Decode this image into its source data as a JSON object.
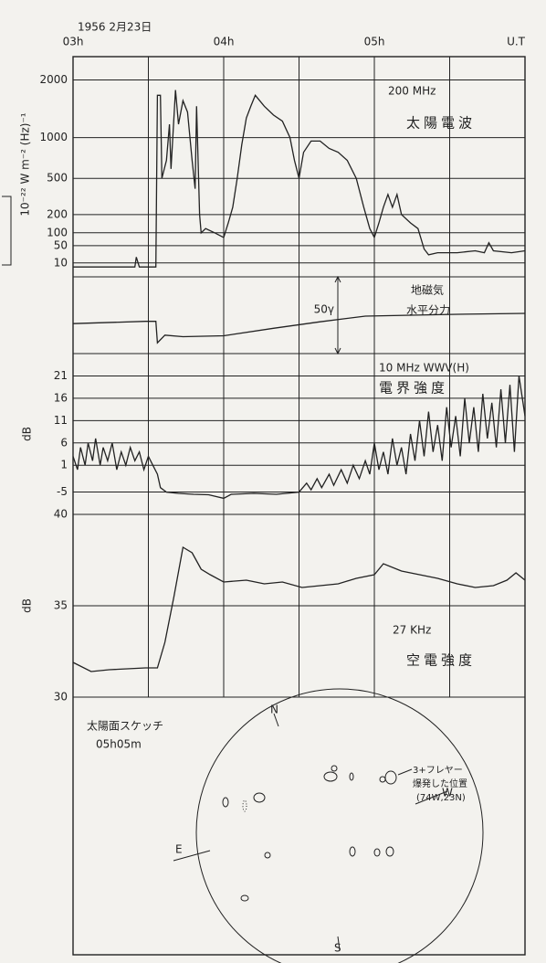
{
  "chart_data": [
    {
      "type": "line",
      "title": "1956 2月23日",
      "xlim": [
        3,
        6
      ],
      "xticks": [
        {
          "value": 3,
          "label": "03h"
        },
        {
          "value": 4,
          "label": "04h"
        },
        {
          "value": 5,
          "label": "05h"
        }
      ],
      "xlabel": "U.T",
      "xgrid": [
        3.5,
        4,
        4.5,
        5,
        5.5
      ],
      "ylabel": "10⁻²² W m⁻² (Hz)⁻¹",
      "yscale": "sqrt",
      "ylim": [
        0,
        2500
      ],
      "yticks": [
        10,
        50,
        100,
        200,
        500,
        1000,
        2000
      ],
      "annotations": [
        "200 MHz",
        "太陽電波"
      ],
      "color": "#222",
      "x": [
        3.0,
        3.41,
        3.42,
        3.44,
        3.55,
        3.56,
        3.58,
        3.59,
        3.62,
        3.64,
        3.65,
        3.68,
        3.7,
        3.73,
        3.76,
        3.79,
        3.81,
        3.82,
        3.84,
        3.85,
        3.88,
        3.94,
        4.0,
        4.03,
        4.06,
        4.09,
        4.12,
        4.15,
        4.18,
        4.21,
        4.27,
        4.33,
        4.39,
        4.44,
        4.47,
        4.5,
        4.53,
        4.58,
        4.64,
        4.7,
        4.76,
        4.82,
        4.88,
        4.93,
        4.97,
        5.0,
        5.03,
        5.06,
        5.09,
        5.12,
        5.15,
        5.18,
        5.24,
        5.29,
        5.33,
        5.36,
        5.42,
        5.55,
        5.67,
        5.73,
        5.76,
        5.79,
        5.91,
        6.0
      ],
      "values": [
        5,
        5,
        20,
        5,
        5,
        1700,
        1700,
        500,
        700,
        1200,
        600,
        1800,
        1200,
        1600,
        1400,
        700,
        400,
        1500,
        200,
        100,
        120,
        100,
        80,
        150,
        250,
        500,
        900,
        1300,
        1500,
        1700,
        1500,
        1350,
        1250,
        1000,
        700,
        500,
        800,
        950,
        950,
        850,
        800,
        700,
        500,
        250,
        120,
        80,
        150,
        250,
        350,
        250,
        350,
        200,
        150,
        120,
        40,
        25,
        30,
        30,
        35,
        30,
        60,
        35,
        30,
        35
      ]
    },
    {
      "type": "line",
      "annotations": [
        "地磁気",
        "水平分力"
      ],
      "ylim": [
        0,
        50
      ],
      "scale_bar": {
        "value": 50,
        "label": "50γ"
      },
      "color": "#222",
      "x": [
        3.0,
        3.48,
        3.55,
        3.56,
        3.61,
        3.73,
        4.0,
        4.33,
        4.64,
        4.94,
        5.24,
        5.55,
        6.0
      ],
      "values": [
        19.5,
        21,
        21,
        7,
        12,
        11,
        11.6,
        16.5,
        20.7,
        24.4,
        25,
        25.6,
        26.2
      ]
    },
    {
      "type": "line",
      "annotations": [
        "10 MHz WWV(H)",
        "電界強度"
      ],
      "ylabel": "dB",
      "ylim": [
        -10,
        26
      ],
      "yticks": [
        -5,
        1,
        6,
        11,
        16,
        21
      ],
      "color": "#222",
      "x": [
        3.0,
        3.03,
        3.05,
        3.08,
        3.1,
        3.13,
        3.15,
        3.18,
        3.2,
        3.23,
        3.26,
        3.29,
        3.32,
        3.35,
        3.38,
        3.41,
        3.44,
        3.47,
        3.5,
        3.53,
        3.56,
        3.58,
        3.62,
        3.7,
        3.8,
        3.9,
        4.0,
        4.05,
        4.2,
        4.35,
        4.5,
        4.55,
        4.58,
        4.62,
        4.65,
        4.7,
        4.73,
        4.78,
        4.82,
        4.86,
        4.9,
        4.94,
        4.97,
        5.0,
        5.03,
        5.06,
        5.09,
        5.12,
        5.15,
        5.18,
        5.21,
        5.24,
        5.27,
        5.3,
        5.33,
        5.36,
        5.39,
        5.42,
        5.45,
        5.48,
        5.51,
        5.54,
        5.57,
        5.6,
        5.63,
        5.66,
        5.69,
        5.72,
        5.75,
        5.78,
        5.81,
        5.84,
        5.87,
        5.9,
        5.93,
        5.96,
        6.0
      ],
      "values": [
        3,
        0,
        5,
        1,
        6,
        2,
        7,
        1,
        5,
        2,
        6,
        0,
        4,
        1,
        5,
        2,
        4,
        0,
        3,
        1,
        -1,
        -4,
        -5,
        -5.3,
        -5.5,
        -5.6,
        -6.4,
        -5.5,
        -5.3,
        -5.5,
        -5,
        -3,
        -4.5,
        -2,
        -4,
        -1,
        -3.5,
        0,
        -3,
        1,
        -2,
        2,
        -1,
        6,
        0,
        4,
        -1,
        7,
        1,
        5,
        -1,
        8,
        2,
        11,
        3,
        13,
        4,
        10,
        2,
        14,
        5,
        12,
        3,
        16,
        6,
        14,
        4,
        17,
        7,
        15,
        5,
        18,
        6,
        19,
        4,
        21,
        12
      ]
    },
    {
      "type": "line",
      "annotations": [
        "27 KHz",
        "空電強度"
      ],
      "ylabel": "dB",
      "ylim": [
        30,
        40
      ],
      "yticks": [
        30,
        35,
        40
      ],
      "color": "#222",
      "x": [
        3.0,
        3.12,
        3.24,
        3.48,
        3.56,
        3.61,
        3.67,
        3.73,
        3.79,
        3.85,
        3.91,
        4.0,
        4.15,
        4.27,
        4.39,
        4.52,
        4.64,
        4.76,
        4.88,
        5.0,
        5.06,
        5.18,
        5.3,
        5.42,
        5.55,
        5.67,
        5.79,
        5.88,
        5.94,
        6.0
      ],
      "values": [
        31.9,
        31.4,
        31.5,
        31.6,
        31.6,
        33,
        35.5,
        38.2,
        37.9,
        37.0,
        36.7,
        36.3,
        36.4,
        36.2,
        36.3,
        36.0,
        36.1,
        36.2,
        36.5,
        36.7,
        37.3,
        36.9,
        36.7,
        36.5,
        36.2,
        36.0,
        36.1,
        36.4,
        36.8,
        36.4
      ]
    }
  ],
  "sketch": {
    "title": "太陽面スケッチ",
    "time": "05h05m",
    "north": "N",
    "east": "E",
    "south": "S",
    "west": "W",
    "flare_label": [
      "3+フレヤー",
      "爆発した位置",
      "(74W,23N)"
    ]
  }
}
